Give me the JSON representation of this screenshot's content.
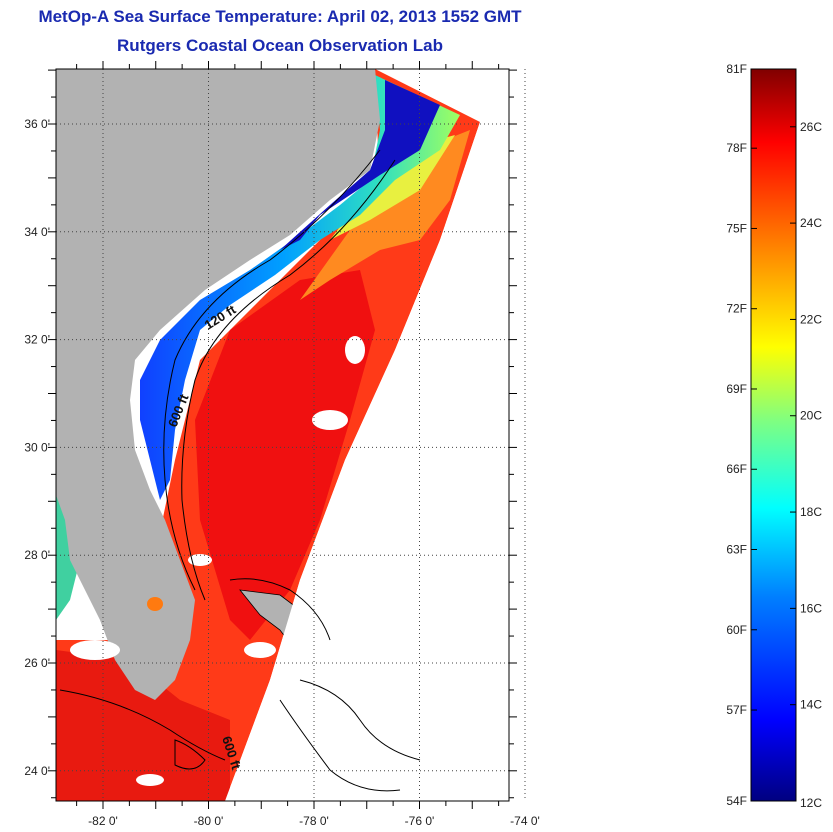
{
  "title": {
    "line1": "MetOp-A Sea Surface Temperature:  April 02, 2013 1552 GMT",
    "line2": "Rutgers Coastal Ocean Observation Lab"
  },
  "map": {
    "lat_ticks": [
      {
        "value": 36,
        "label": "36 0'"
      },
      {
        "value": 34,
        "label": "34 0'"
      },
      {
        "value": 32,
        "label": "32 0'"
      },
      {
        "value": 30,
        "label": "30 0'"
      },
      {
        "value": 28,
        "label": "28 0'"
      },
      {
        "value": 26,
        "label": "26 0'"
      },
      {
        "value": 24,
        "label": "24 0'"
      }
    ],
    "lon_ticks": [
      {
        "value": -82,
        "label": "-82 0'"
      },
      {
        "value": -80,
        "label": "-80 0'"
      },
      {
        "value": -78,
        "label": "-78 0'"
      },
      {
        "value": -76,
        "label": "-76 0'"
      },
      {
        "value": -74,
        "label": "-74 0'"
      }
    ],
    "contour_labels": [
      "120 ft",
      "600 ft",
      "600 ft"
    ],
    "colors": {
      "land": "#b2b2b2",
      "cloud": "#ffffff",
      "frame": "#000000",
      "grid": "#333333"
    }
  },
  "colorbar": {
    "fahrenheit_labels": [
      "81F",
      "78F",
      "75F",
      "72F",
      "69F",
      "66F",
      "63F",
      "60F",
      "57F",
      "54F"
    ],
    "celsius_labels": [
      "26C",
      "24C",
      "22C",
      "20C",
      "18C",
      "16C",
      "14C",
      "12C"
    ],
    "celsius_min": 12,
    "celsius_max": 27.2,
    "stops": [
      "#000080",
      "#0000ff",
      "#0080ff",
      "#00ffff",
      "#80ff80",
      "#ffff00",
      "#ff8000",
      "#ff0000",
      "#800000"
    ]
  }
}
